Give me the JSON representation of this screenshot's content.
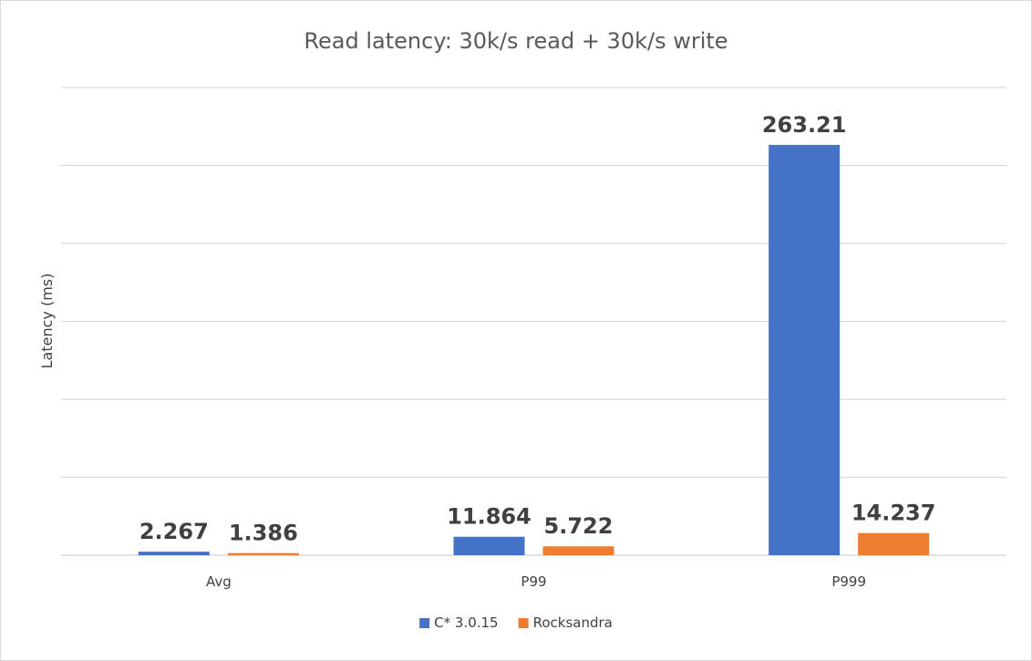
{
  "chart_data": {
    "type": "bar",
    "title": "Read latency: 30k/s read + 30k/s write",
    "xlabel": "",
    "ylabel": "Latency (ms)",
    "categories": [
      "Avg",
      "P99",
      "P999"
    ],
    "series": [
      {
        "name": "C* 3.0.15",
        "color": "#4472c4",
        "values": [
          2.267,
          11.864,
          263.21
        ],
        "labels": [
          "2.267",
          "11.864",
          "263.21"
        ]
      },
      {
        "name": "Rocksandra",
        "color": "#ed7d31",
        "values": [
          1.386,
          5.722,
          14.237
        ],
        "labels": [
          "1.386",
          "5.722",
          "14.237"
        ]
      }
    ],
    "ylim": [
      0,
      300
    ],
    "grid": true,
    "legend_position": "bottom"
  }
}
